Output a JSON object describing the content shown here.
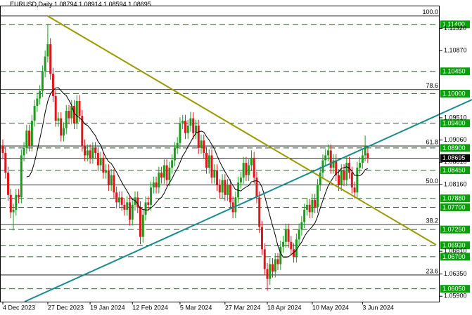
{
  "chart_data": {
    "type": "candlestick",
    "title": "EURUSD,Daily",
    "ylim": [
      1.0579,
      1.1178
    ],
    "yticks": [
      {
        "value": 1.1132,
        "label": "1.11320"
      },
      {
        "value": 1.1087,
        "label": "1.10870"
      },
      {
        "value": 1.0951,
        "label": "1.09510"
      },
      {
        "value": 1.0906,
        "label": "1.09060"
      },
      {
        "value": 1.0861,
        "label": "1.08610"
      },
      {
        "value": 1.0816,
        "label": "1.08160"
      },
      {
        "value": 1.0681,
        "label": "1.06810"
      },
      {
        "value": 1.0635,
        "label": "1.06350"
      },
      {
        "value": 1.059,
        "label": "1.05900"
      }
    ],
    "x_labels": [
      {
        "value": 0,
        "label": "4 Dec 2023"
      },
      {
        "value": 17,
        "label": "27 Dec 2023"
      },
      {
        "value": 33,
        "label": "19 Jan 2024"
      },
      {
        "value": 49,
        "label": "12 Feb 2024"
      },
      {
        "value": 67,
        "label": "5 Mar 2024"
      },
      {
        "value": 84,
        "label": "27 Mar 2024"
      },
      {
        "value": 100,
        "label": "18 Apr 2024"
      },
      {
        "value": 117,
        "label": "10 May 2024"
      },
      {
        "value": 136,
        "label": "3 Jun 2024"
      }
    ],
    "up_color": "#1c9c1c",
    "down_color": "#e0161b",
    "levels": [
      {
        "value": 1.114,
        "label": "1.11400"
      },
      {
        "value": 1.1045,
        "label": "1.10450"
      },
      {
        "value": 1.1,
        "label": "1.10000"
      },
      {
        "value": 1.094,
        "label": "1.09400"
      },
      {
        "value": 1.089,
        "label": "1.08900"
      },
      {
        "value": 1.0845,
        "label": "1.08450"
      },
      {
        "value": 1.0788,
        "label": "1.07880"
      },
      {
        "value": 1.077,
        "label": "1.07700"
      },
      {
        "value": 1.0725,
        "label": "1.07250"
      },
      {
        "value": 1.0693,
        "label": "1.06930"
      },
      {
        "value": 1.067,
        "label": "1.06700"
      },
      {
        "value": 1.0605,
        "label": "1.06050"
      }
    ],
    "level_color": "#0b9e0b",
    "fib_levels": [
      {
        "value": 1.1157,
        "label": "100.0"
      },
      {
        "value": 1.1008,
        "label": "78.6"
      },
      {
        "value": 1.0894,
        "label": "61.8"
      },
      {
        "value": 1.0815,
        "label": "50.0"
      },
      {
        "value": 1.0735,
        "label": "38.2"
      },
      {
        "value": 1.0633,
        "label": "23.6"
      }
    ],
    "ohlc": [
      [
        1.0895,
        1.0907,
        1.0868,
        1.088
      ],
      [
        1.088,
        1.0892,
        1.0828,
        1.084
      ],
      [
        1.084,
        1.0852,
        1.0783,
        1.0795
      ],
      [
        1.0795,
        1.0807,
        1.0748,
        1.076
      ],
      [
        1.076,
        1.0777,
        1.0723,
        1.0765
      ],
      [
        1.0765,
        1.0807,
        1.0753,
        1.0795
      ],
      [
        1.0795,
        1.0807,
        1.0778,
        1.079
      ],
      [
        1.079,
        1.0887,
        1.0778,
        1.0875
      ],
      [
        1.0875,
        1.0902,
        1.0863,
        1.089
      ],
      [
        1.089,
        1.0937,
        1.0878,
        1.0925
      ],
      [
        1.0925,
        1.0937,
        1.0883,
        1.0895
      ],
      [
        1.0895,
        1.0957,
        1.0883,
        1.0945
      ],
      [
        1.0945,
        1.0987,
        1.0933,
        1.0975
      ],
      [
        1.0975,
        1.1002,
        1.0963,
        1.099
      ],
      [
        1.099,
        1.1017,
        1.0978,
        1.1005
      ],
      [
        1.1005,
        1.1057,
        1.0993,
        1.1045
      ],
      [
        1.1045,
        1.1087,
        1.1033,
        1.1075
      ],
      [
        1.1075,
        1.1139,
        1.1063,
        1.11
      ],
      [
        1.11,
        1.1112,
        1.1028,
        1.104
      ],
      [
        1.104,
        1.1052,
        1.0983,
        1.0995
      ],
      [
        1.0995,
        1.1007,
        1.0933,
        1.0945
      ],
      [
        1.0945,
        1.0962,
        1.0933,
        1.095
      ],
      [
        1.095,
        1.0962,
        1.0903,
        1.0915
      ],
      [
        1.0915,
        1.0942,
        1.0903,
        1.093
      ],
      [
        1.093,
        1.0977,
        1.0918,
        1.0965
      ],
      [
        1.0965,
        1.0977,
        1.0938,
        1.095
      ],
      [
        1.095,
        1.0987,
        1.0938,
        1.0975
      ],
      [
        1.0975,
        1.0987,
        1.0928,
        1.094
      ],
      [
        1.094,
        1.0997,
        1.0928,
        1.0985
      ],
      [
        1.0985,
        1.0997,
        1.0943,
        1.0955
      ],
      [
        1.0955,
        1.0967,
        1.0883,
        1.0895
      ],
      [
        1.0895,
        1.0907,
        1.0863,
        1.0875
      ],
      [
        1.0875,
        1.0897,
        1.0863,
        1.0885
      ],
      [
        1.0885,
        1.0897,
        1.0858,
        1.087
      ],
      [
        1.087,
        1.0902,
        1.0858,
        1.089
      ],
      [
        1.089,
        1.0902,
        1.0868,
        1.088
      ],
      [
        1.088,
        1.0892,
        1.0843,
        1.0855
      ],
      [
        1.0855,
        1.0882,
        1.0843,
        1.087
      ],
      [
        1.087,
        1.0882,
        1.0828,
        1.084
      ],
      [
        1.084,
        1.0857,
        1.0828,
        1.0845
      ],
      [
        1.0845,
        1.0857,
        1.0803,
        1.0815
      ],
      [
        1.0815,
        1.0847,
        1.0803,
        1.0835
      ],
      [
        1.0835,
        1.0847,
        1.0788,
        1.08
      ],
      [
        1.08,
        1.0812,
        1.0768,
        1.078
      ],
      [
        1.078,
        1.0802,
        1.0768,
        1.079
      ],
      [
        1.079,
        1.0802,
        1.0763,
        1.0775
      ],
      [
        1.0775,
        1.0787,
        1.0753,
        1.0765
      ],
      [
        1.0765,
        1.0792,
        1.0753,
        1.078
      ],
      [
        1.078,
        1.0792,
        1.0733,
        1.0745
      ],
      [
        1.0745,
        1.0787,
        1.0733,
        1.0775
      ],
      [
        1.0775,
        1.0802,
        1.0763,
        1.079
      ],
      [
        1.079,
        1.0802,
        1.0758,
        1.077
      ],
      [
        1.077,
        1.0782,
        1.0695,
        1.071
      ],
      [
        1.071,
        1.0767,
        1.0698,
        1.0755
      ],
      [
        1.0755,
        1.0792,
        1.0743,
        1.078
      ],
      [
        1.078,
        1.0792,
        1.0763,
        1.0775
      ],
      [
        1.0775,
        1.0822,
        1.0763,
        1.081
      ],
      [
        1.081,
        1.0832,
        1.0798,
        1.082
      ],
      [
        1.082,
        1.0832,
        1.0798,
        1.081
      ],
      [
        1.081,
        1.0852,
        1.0798,
        1.084
      ],
      [
        1.084,
        1.0852,
        1.0818,
        1.083
      ],
      [
        1.083,
        1.0867,
        1.0818,
        1.0855
      ],
      [
        1.0855,
        1.0867,
        1.0813,
        1.0825
      ],
      [
        1.0825,
        1.0862,
        1.0813,
        1.085
      ],
      [
        1.085,
        1.0877,
        1.0838,
        1.0865
      ],
      [
        1.0865,
        1.0902,
        1.0853,
        1.089
      ],
      [
        1.089,
        1.0912,
        1.0878,
        1.09
      ],
      [
        1.09,
        1.0952,
        1.0888,
        1.094
      ],
      [
        1.094,
        1.0957,
        1.0928,
        1.0945
      ],
      [
        1.0945,
        1.0957,
        1.0908,
        1.092
      ],
      [
        1.092,
        1.0947,
        1.0908,
        1.0935
      ],
      [
        1.0935,
        1.0963,
        1.0923,
        1.095
      ],
      [
        1.095,
        1.0962,
        1.0908,
        1.092
      ],
      [
        1.092,
        1.0947,
        1.0908,
        1.0935
      ],
      [
        1.0935,
        1.0947,
        1.0878,
        1.089
      ],
      [
        1.089,
        1.0917,
        1.0878,
        1.0905
      ],
      [
        1.0905,
        1.0917,
        1.0868,
        1.088
      ],
      [
        1.088,
        1.0892,
        1.0838,
        1.085
      ],
      [
        1.085,
        1.0887,
        1.0838,
        1.0875
      ],
      [
        1.0875,
        1.0887,
        1.0818,
        1.083
      ],
      [
        1.083,
        1.0857,
        1.0818,
        1.0845
      ],
      [
        1.0845,
        1.0857,
        1.0803,
        1.0815
      ],
      [
        1.0815,
        1.0827,
        1.0788,
        1.08
      ],
      [
        1.08,
        1.0837,
        1.0788,
        1.0825
      ],
      [
        1.0825,
        1.0837,
        1.0783,
        1.0795
      ],
      [
        1.0795,
        1.0827,
        1.0783,
        1.0815
      ],
      [
        1.0815,
        1.0827,
        1.0768,
        1.078
      ],
      [
        1.078,
        1.0792,
        1.0748,
        1.076
      ],
      [
        1.076,
        1.0802,
        1.0748,
        1.079
      ],
      [
        1.079,
        1.0832,
        1.0778,
        1.082
      ],
      [
        1.082,
        1.0842,
        1.0808,
        1.083
      ],
      [
        1.083,
        1.0872,
        1.0818,
        1.086
      ],
      [
        1.086,
        1.0872,
        1.0823,
        1.0835
      ],
      [
        1.0835,
        1.0867,
        1.0823,
        1.0855
      ],
      [
        1.0855,
        1.0885,
        1.0843,
        1.087
      ],
      [
        1.087,
        1.0882,
        1.0818,
        1.083
      ],
      [
        1.083,
        1.0842,
        1.0778,
        1.079
      ],
      [
        1.079,
        1.0802,
        1.0718,
        1.073
      ],
      [
        1.073,
        1.0742,
        1.0673,
        1.0685
      ],
      [
        1.0685,
        1.0697,
        1.0633,
        1.0645
      ],
      [
        1.0645,
        1.0657,
        1.0601,
        1.0625
      ],
      [
        1.0625,
        1.0667,
        1.0613,
        1.0655
      ],
      [
        1.0655,
        1.0667,
        1.0628,
        1.064
      ],
      [
        1.064,
        1.0677,
        1.0628,
        1.0665
      ],
      [
        1.0665,
        1.0677,
        1.0643,
        1.0655
      ],
      [
        1.0655,
        1.0702,
        1.0643,
        1.069
      ],
      [
        1.069,
        1.0712,
        1.0678,
        1.07
      ],
      [
        1.07,
        1.0737,
        1.0688,
        1.0725
      ],
      [
        1.0725,
        1.0737,
        1.0688,
        1.07
      ],
      [
        1.07,
        1.0712,
        1.0673,
        1.0685
      ],
      [
        1.0685,
        1.0697,
        1.0658,
        1.067
      ],
      [
        1.067,
        1.0717,
        1.0658,
        1.0705
      ],
      [
        1.0705,
        1.0737,
        1.0693,
        1.0725
      ],
      [
        1.0725,
        1.0752,
        1.0713,
        1.074
      ],
      [
        1.074,
        1.0777,
        1.0728,
        1.0765
      ],
      [
        1.0765,
        1.0787,
        1.0753,
        1.0775
      ],
      [
        1.0775,
        1.0787,
        1.0748,
        1.076
      ],
      [
        1.076,
        1.0797,
        1.0748,
        1.0785
      ],
      [
        1.0785,
        1.0797,
        1.0758,
        1.077
      ],
      [
        1.077,
        1.0827,
        1.0758,
        1.0815
      ],
      [
        1.0815,
        1.0852,
        1.0803,
        1.084
      ],
      [
        1.084,
        1.0877,
        1.0828,
        1.0865
      ],
      [
        1.0865,
        1.0887,
        1.0853,
        1.0875
      ],
      [
        1.0875,
        1.0897,
        1.0863,
        1.0885
      ],
      [
        1.0885,
        1.0897,
        1.0838,
        1.085
      ],
      [
        1.085,
        1.0877,
        1.0838,
        1.0865
      ],
      [
        1.0865,
        1.0877,
        1.0823,
        1.0835
      ],
      [
        1.0835,
        1.0847,
        1.0803,
        1.0815
      ],
      [
        1.0815,
        1.0857,
        1.0803,
        1.0845
      ],
      [
        1.0845,
        1.0857,
        1.0813,
        1.0825
      ],
      [
        1.0825,
        1.0872,
        1.0813,
        1.086
      ],
      [
        1.086,
        1.0872,
        1.0828,
        1.084
      ],
      [
        1.084,
        1.0852,
        1.0798,
        1.081
      ],
      [
        1.081,
        1.0822,
        1.0788,
        1.08
      ],
      [
        1.08,
        1.0862,
        1.0788,
        1.085
      ],
      [
        1.085,
        1.0872,
        1.0838,
        1.086
      ],
      [
        1.086,
        1.0887,
        1.0848,
        1.0875
      ],
      [
        1.0875,
        1.0915,
        1.0863,
        1.0895
      ],
      [
        1.08794,
        1.08914,
        1.08594,
        1.08695
      ]
    ]
  }
}
